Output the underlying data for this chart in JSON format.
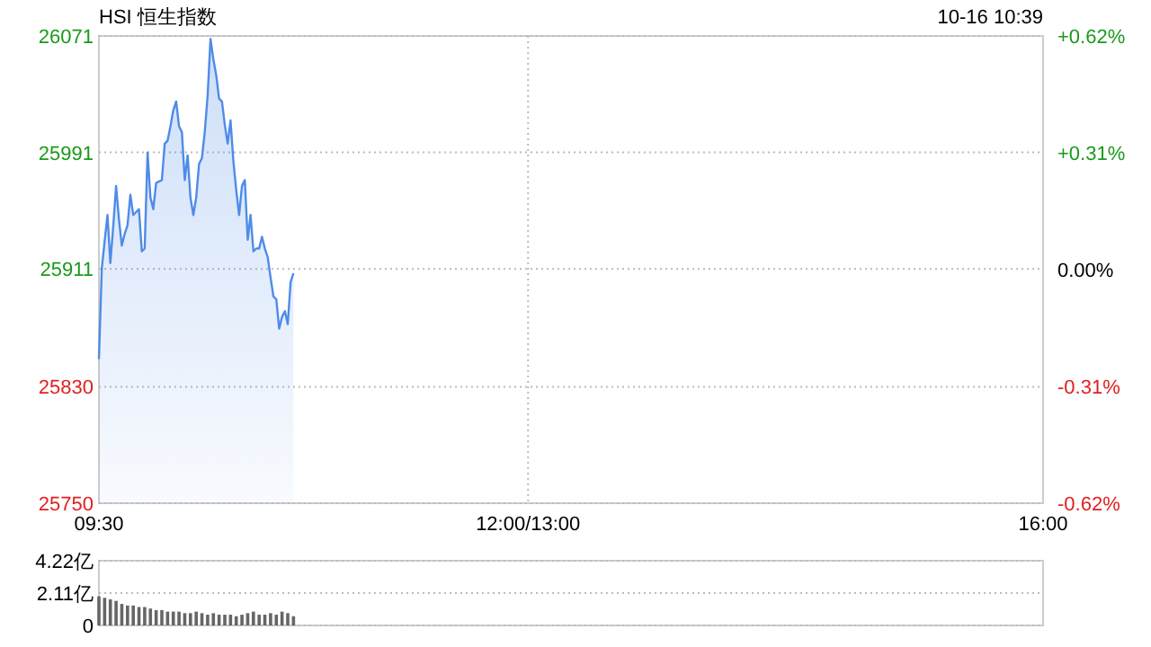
{
  "chart_data": [
    {
      "type": "area",
      "title": "HSI 恒生指数",
      "annotations": [
        "10-16 10:39"
      ],
      "categories": [
        "09:30",
        null,
        null,
        null,
        null,
        null,
        null,
        null,
        null,
        null,
        null,
        null,
        null,
        null,
        null,
        null,
        null,
        null,
        null,
        null,
        null,
        null,
        null,
        null,
        null,
        null,
        null,
        null,
        null,
        null,
        null,
        null,
        null,
        null,
        null,
        null,
        null,
        null,
        null,
        null,
        null,
        null,
        null,
        null,
        null,
        null,
        null,
        null,
        null,
        null,
        null,
        null,
        null,
        null,
        null,
        null,
        null,
        null,
        null,
        null,
        null,
        null,
        null,
        null,
        null,
        null,
        null,
        null,
        null,
        null,
        null,
        null,
        null,
        null,
        null,
        null,
        null,
        null,
        null,
        null,
        null,
        null,
        null,
        null,
        null,
        null,
        null,
        null,
        null,
        null,
        null,
        null,
        null,
        null,
        null,
        null,
        null,
        null,
        null,
        null,
        null,
        null,
        null,
        null,
        null,
        null,
        null,
        null,
        null,
        null,
        null,
        null,
        null,
        null,
        null,
        null,
        null,
        null,
        null,
        null,
        null,
        null,
        null,
        null,
        null,
        null,
        null,
        null,
        null,
        null,
        null,
        null,
        null,
        null,
        null,
        null,
        null,
        null,
        null,
        null,
        null,
        null,
        null,
        null,
        null,
        null,
        null,
        null,
        null,
        null,
        "12:00/13:00",
        null,
        null,
        null,
        null,
        null,
        null,
        null,
        null,
        null,
        null,
        null,
        null,
        null,
        null,
        null,
        null,
        null,
        null,
        null,
        null,
        null,
        null,
        null,
        null,
        null,
        null,
        null,
        null,
        null,
        null,
        null,
        null,
        null,
        null,
        null,
        null,
        null,
        null,
        null,
        null,
        null,
        null,
        null,
        null,
        null,
        null,
        null,
        null,
        null,
        null,
        null,
        null,
        null,
        null,
        null,
        null,
        null,
        null,
        null,
        null,
        null,
        null,
        null,
        null,
        null,
        null,
        null,
        null,
        null,
        null,
        null,
        null,
        null,
        null,
        null,
        null,
        null,
        null,
        null,
        null,
        null,
        null,
        null,
        null,
        null,
        null,
        null,
        null,
        null,
        null,
        null,
        null,
        null,
        null,
        null,
        null,
        null,
        null,
        null,
        null,
        null,
        null,
        null,
        null,
        null,
        null,
        null,
        null,
        null,
        null,
        null,
        null,
        null,
        null,
        null,
        null,
        null,
        null,
        null,
        null,
        null,
        null,
        null,
        null,
        null,
        null,
        null,
        null,
        null,
        null,
        null,
        null,
        null,
        null,
        null,
        null,
        null,
        null,
        null,
        null,
        null,
        null,
        null,
        null,
        null,
        null,
        null,
        null,
        null,
        null,
        null,
        null,
        null,
        null,
        null,
        null,
        null,
        null,
        null,
        null,
        null,
        null,
        null,
        null,
        null,
        null,
        null,
        null,
        null,
        null,
        null,
        null,
        null,
        null,
        null,
        null,
        null,
        null,
        null,
        "16:00"
      ],
      "series": [
        {
          "color": "#4f8be8",
          "values": [
            25849,
            25911,
            25930,
            25948,
            25915,
            25940,
            25968,
            25945,
            25927,
            25935,
            25941,
            25962,
            25948,
            25950,
            25952,
            25923,
            25925,
            25991,
            25960,
            25952,
            25970,
            25971,
            25972,
            25997,
            25999,
            26009,
            26020,
            26026,
            26009,
            26005,
            25972,
            25989,
            25960,
            25948,
            25960,
            25983,
            25987,
            26005,
            26030,
            26069,
            26055,
            26044,
            26028,
            26026,
            26010,
            25997,
            26013,
            25985,
            25965,
            25948,
            25968,
            25972,
            25931,
            25948,
            25923,
            25925,
            25925,
            25933,
            25925,
            25919,
            25905,
            25892,
            25890,
            25870,
            25878,
            25882,
            25873,
            25902,
            25908,
            null,
            null,
            null,
            null,
            null,
            null,
            null,
            null,
            null,
            null,
            null,
            null,
            null,
            null,
            null,
            null,
            null,
            null,
            null,
            null,
            null,
            null,
            null,
            null,
            null,
            null,
            null,
            null,
            null,
            null,
            null,
            null,
            null,
            null,
            null,
            null,
            null,
            null,
            null,
            null,
            null,
            null,
            null,
            null,
            null,
            null,
            null,
            null,
            null,
            null,
            null,
            null,
            null,
            null,
            null,
            null,
            null,
            null,
            null,
            null,
            null,
            null,
            null,
            null,
            null,
            null,
            null,
            null,
            null,
            null,
            null,
            null,
            null,
            null,
            null,
            null,
            null,
            null,
            null,
            null,
            null,
            null,
            null,
            null,
            null,
            null,
            null,
            null,
            null,
            null,
            null,
            null,
            null,
            null,
            null,
            null,
            null,
            null,
            null,
            null,
            null,
            null,
            null,
            null,
            null,
            null,
            null,
            null,
            null,
            null,
            null,
            null,
            null,
            null,
            null,
            null,
            null,
            null,
            null,
            null,
            null,
            null,
            null,
            null,
            null,
            null,
            null,
            null,
            null,
            null,
            null,
            null,
            null,
            null,
            null,
            null,
            null,
            null,
            null,
            null,
            null,
            null,
            null,
            null,
            null,
            null,
            null,
            null,
            null,
            null,
            null,
            null,
            null,
            null,
            null,
            null,
            null,
            null,
            null,
            null,
            null,
            null,
            null,
            null,
            null,
            null,
            null,
            null,
            null,
            null,
            null,
            null,
            null,
            null,
            null,
            null,
            null,
            null,
            null,
            null,
            null,
            null,
            null,
            null,
            null,
            null,
            null,
            null,
            null,
            null,
            null,
            null,
            null,
            null,
            null,
            null,
            null,
            null,
            null,
            null,
            null,
            null,
            null,
            null,
            null,
            null,
            null,
            null,
            null,
            null,
            null,
            null,
            null,
            null,
            null,
            null,
            null,
            null,
            null,
            null,
            null,
            null,
            null,
            null,
            null,
            null,
            null,
            null,
            null,
            null,
            null,
            null,
            null,
            null,
            null,
            null,
            null,
            null,
            null,
            null,
            null,
            null,
            null,
            null,
            null,
            null,
            null,
            null,
            null,
            null,
            null,
            null,
            null,
            null,
            null,
            null,
            null,
            null,
            null,
            null,
            null,
            null
          ]
        }
      ],
      "ylim": [
        25750,
        26071
      ],
      "yticks": [
        25750,
        25830,
        25911,
        25991,
        26071
      ],
      "y2lim": [
        -0.62,
        0.62
      ],
      "y2ticks": [
        {
          "value": 0.62,
          "label": "+0.62%"
        },
        {
          "value": 0.31,
          "label": "+0.31%"
        },
        {
          "value": 0,
          "label": "0.00%"
        },
        {
          "value": -0.31,
          "label": "-0.31%"
        },
        {
          "value": -0.62,
          "label": "-0.62%"
        }
      ],
      "grid": true,
      "line_style": "solid"
    },
    {
      "type": "bar",
      "categories": [
        null,
        null,
        null,
        null,
        null,
        null,
        null,
        null,
        null,
        null,
        null,
        null,
        null,
        null,
        null,
        null,
        null,
        null,
        null,
        null,
        null,
        null,
        null,
        null,
        null,
        null,
        null,
        null,
        null,
        null,
        null,
        null,
        null,
        null,
        null,
        null,
        null,
        null,
        null,
        null,
        null,
        null,
        null,
        null,
        null,
        null,
        null,
        null,
        null,
        null,
        null,
        null,
        null,
        null,
        null,
        null,
        null,
        null,
        null,
        null,
        null,
        null,
        null,
        null,
        null,
        null,
        null,
        null,
        null,
        null,
        null,
        null,
        null,
        null,
        null,
        null,
        null,
        null,
        null,
        null,
        null,
        null,
        null,
        null,
        null,
        null,
        null,
        null,
        null,
        null,
        null,
        null,
        null,
        null,
        null,
        null,
        null,
        null,
        null,
        null,
        null,
        null,
        null,
        null,
        null,
        null,
        null,
        null,
        null,
        null,
        null,
        null,
        null,
        null,
        null,
        null,
        null,
        null,
        null,
        null,
        null,
        null,
        null,
        null,
        null,
        null,
        null,
        null,
        null,
        null,
        null,
        null,
        null,
        null,
        null,
        null,
        null,
        null,
        null,
        null,
        null,
        null,
        null,
        null,
        null,
        null,
        null,
        null,
        null,
        null,
        null,
        null,
        null,
        null,
        null,
        null,
        null,
        null,
        null,
        null,
        null,
        null,
        null,
        null,
        null,
        null,
        null,
        null,
        null,
        null,
        null,
        null,
        null,
        null,
        null,
        null,
        null,
        null,
        null,
        null,
        null,
        null,
        null,
        null,
        null,
        null,
        null,
        null,
        null,
        null,
        null,
        null,
        null,
        null,
        null,
        null,
        null,
        null,
        null,
        null,
        null,
        null,
        null,
        null,
        null,
        null,
        null,
        null,
        null,
        null,
        null,
        null,
        null,
        null,
        null,
        null,
        null,
        null,
        null,
        null,
        null,
        null,
        null,
        null,
        null,
        null,
        null,
        null,
        null,
        null,
        null,
        null,
        null,
        null,
        null,
        null,
        null,
        null,
        null,
        null,
        null,
        null,
        null,
        null,
        null,
        null,
        null,
        null,
        null,
        null,
        null,
        null,
        null,
        null,
        null,
        null,
        null,
        null,
        null,
        null,
        null,
        null,
        null,
        null,
        null,
        null,
        null,
        null,
        null,
        null,
        null,
        null,
        null,
        null,
        null,
        null,
        null,
        null,
        null,
        null,
        null,
        null,
        null,
        null,
        null,
        null,
        null,
        null,
        null,
        null,
        null,
        null,
        null,
        null,
        null,
        null,
        null,
        null,
        null,
        null,
        null,
        null,
        null,
        null,
        null,
        null,
        null,
        null,
        null,
        null,
        null,
        null,
        null,
        null,
        null,
        null,
        null,
        null,
        null,
        null,
        null,
        null,
        null,
        null,
        null,
        null,
        null,
        null,
        null,
        null,
        null
      ],
      "series": [
        {
          "color": "#666666",
          "values": [
            1.9,
            null,
            1.8,
            null,
            1.7,
            null,
            1.6,
            null,
            1.4,
            null,
            1.3,
            null,
            1.3,
            null,
            1.2,
            null,
            1.2,
            null,
            1.1,
            null,
            1.0,
            null,
            1.0,
            null,
            0.9,
            null,
            0.9,
            null,
            0.9,
            null,
            0.8,
            null,
            0.8,
            null,
            0.9,
            null,
            0.8,
            null,
            0.7,
            null,
            0.8,
            null,
            0.7,
            null,
            0.7,
            null,
            0.7,
            null,
            0.6,
            null,
            0.7,
            null,
            0.8,
            null,
            0.9,
            null,
            0.7,
            null,
            0.7,
            null,
            0.8,
            null,
            0.7,
            null,
            0.9,
            null,
            0.8,
            null,
            0.6,
            null,
            null,
            null,
            null,
            null,
            null,
            null,
            null,
            null,
            null,
            null,
            null,
            null,
            null,
            null,
            null,
            null,
            null,
            null,
            null,
            null,
            null,
            null,
            null,
            null,
            null,
            null,
            null,
            null,
            null,
            null,
            null,
            null,
            null,
            null,
            null,
            null,
            null,
            null,
            null,
            null,
            null,
            null,
            null,
            null,
            null,
            null,
            null,
            null,
            null,
            null,
            null,
            null,
            null,
            null,
            null,
            null,
            null,
            null,
            null,
            null,
            null,
            null,
            null,
            null,
            null,
            null,
            null,
            null,
            null,
            null,
            null,
            null,
            null,
            null,
            null,
            null,
            null,
            null,
            null,
            null,
            null,
            null,
            null,
            null,
            null,
            null,
            null,
            null,
            null,
            null,
            null,
            null,
            null,
            null,
            null,
            null,
            null,
            null,
            null,
            null,
            null,
            null,
            null,
            null,
            null,
            null,
            null,
            null,
            null,
            null,
            null,
            null,
            null,
            null,
            null,
            null,
            null,
            null,
            null,
            null,
            null,
            null,
            null,
            null,
            null,
            null,
            null,
            null,
            null,
            null,
            null,
            null,
            null,
            null,
            null,
            null,
            null,
            null,
            null,
            null,
            null,
            null,
            null,
            null,
            null,
            null,
            null,
            null,
            null,
            null,
            null,
            null,
            null,
            null,
            null,
            null,
            null,
            null,
            null,
            null,
            null,
            null,
            null,
            null,
            null,
            null,
            null,
            null,
            null,
            null,
            null,
            null,
            null,
            null,
            null,
            null,
            null,
            null,
            null,
            null,
            null,
            null,
            null,
            null,
            null,
            null,
            null,
            null,
            null,
            null,
            null,
            null,
            null,
            null,
            null,
            null,
            null,
            null,
            null,
            null,
            null,
            null,
            null,
            null,
            null,
            null,
            null,
            null,
            null,
            null,
            null,
            null,
            null,
            null,
            null,
            null,
            null,
            null,
            null,
            null,
            null,
            null,
            null,
            null,
            null,
            null,
            null,
            null,
            null,
            null,
            null,
            null,
            null,
            null,
            null,
            null,
            null,
            null,
            null,
            null,
            null,
            null,
            null,
            null,
            null,
            null,
            null,
            null,
            null,
            null,
            null,
            null,
            null,
            null,
            null,
            null,
            null,
            null,
            null,
            null,
            null
          ]
        }
      ],
      "ylim": [
        0,
        4.22
      ],
      "yticks": [
        0,
        {
          "value": 2.11,
          "label": "2.11亿"
        },
        {
          "value": 4.22,
          "label": "4.22亿"
        }
      ],
      "grid": "y",
      "tick_labels": "y"
    }
  ]
}
